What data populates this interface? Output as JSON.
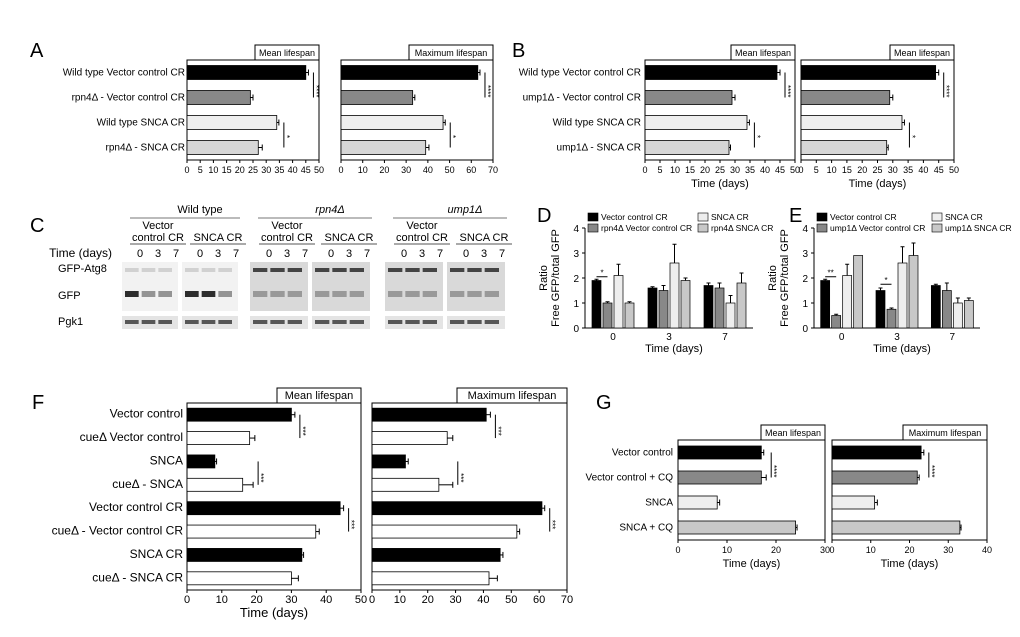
{
  "panels": {
    "A": {
      "letter": "A"
    },
    "B": {
      "letter": "B"
    },
    "C": {
      "letter": "C"
    },
    "D": {
      "letter": "D"
    },
    "E": {
      "letter": "E"
    },
    "F": {
      "letter": "F"
    },
    "G": {
      "letter": "G"
    }
  },
  "blot": {
    "groups": [
      "Wild type",
      "rpn4Δ",
      "ump1Δ"
    ],
    "conditions": [
      "Vector\ncontrol CR",
      "SNCA CR"
    ],
    "time_label": "Time (days)",
    "timepoints": [
      "0",
      "3",
      "7"
    ],
    "bands": [
      "GFP-Atg8",
      "GFP",
      "Pgk1"
    ]
  },
  "chart_data": [
    {
      "id": "A1",
      "type": "bar",
      "orientation": "horizontal",
      "title": "Mean lifespan",
      "categories": [
        "Wild type Vector control CR",
        "rpn4Δ - Vector control CR",
        "Wild type SNCA CR",
        "rpn4Δ - SNCA CR"
      ],
      "values": [
        45,
        24,
        34,
        27
      ],
      "errors": [
        1,
        1,
        0.8,
        1.5
      ],
      "colors": [
        "#000000",
        "#888888",
        "#eeeeee",
        "#d6d6d6"
      ],
      "xlim": [
        0,
        50
      ],
      "xticks": [
        0,
        5,
        10,
        15,
        20,
        25,
        30,
        35,
        40,
        45,
        50
      ],
      "sig": [
        "****",
        "*"
      ]
    },
    {
      "id": "A2",
      "type": "bar",
      "orientation": "horizontal",
      "title": "Maximum lifespan",
      "categories": [
        "Wild type Vector control CR",
        "rpn4Δ - Vector control CR",
        "Wild type SNCA CR",
        "rpn4Δ - SNCA CR"
      ],
      "values": [
        63,
        33,
        47,
        39
      ],
      "errors": [
        1,
        1,
        1,
        1.5
      ],
      "colors": [
        "#000000",
        "#888888",
        "#eeeeee",
        "#d6d6d6"
      ],
      "xlim": [
        0,
        70
      ],
      "xticks": [
        0,
        10,
        20,
        30,
        40,
        50,
        60,
        70
      ],
      "sig": [
        "****",
        "*"
      ]
    },
    {
      "id": "B1",
      "type": "bar",
      "orientation": "horizontal",
      "title": "Mean lifespan",
      "xlabel": "Time (days)",
      "categories": [
        "Wild type Vector control CR",
        "ump1Δ - Vector control CR",
        "Wild type SNCA CR",
        "ump1Δ - SNCA CR"
      ],
      "values": [
        44,
        29,
        34,
        28
      ],
      "errors": [
        1,
        1,
        0.8,
        0.5
      ],
      "colors": [
        "#000000",
        "#888888",
        "#eeeeee",
        "#d6d6d6"
      ],
      "xlim": [
        0,
        50
      ],
      "xticks": [
        0,
        5,
        10,
        15,
        20,
        25,
        30,
        35,
        40,
        45,
        50
      ],
      "sig": [
        "****",
        "*"
      ]
    },
    {
      "id": "B2",
      "type": "bar",
      "orientation": "horizontal",
      "title": "Mean lifespan",
      "xlabel": "Time (days)",
      "categories": [
        "Wild type Vector control CR",
        "ump1Δ - Vector control CR",
        "Wild type SNCA CR",
        "ump1Δ - SNCA CR"
      ],
      "values": [
        44,
        29,
        33,
        28
      ],
      "errors": [
        1,
        1,
        0.8,
        0.5
      ],
      "colors": [
        "#000000",
        "#888888",
        "#eeeeee",
        "#d6d6d6"
      ],
      "xlim": [
        0,
        50
      ],
      "xticks": [
        0,
        5,
        10,
        15,
        20,
        25,
        30,
        35,
        40,
        45,
        50
      ],
      "sig": [
        "****",
        "*"
      ]
    },
    {
      "id": "D",
      "type": "bar",
      "ylabel": "Ratio\nFree GFP/total GFP",
      "xlabel": "Time (days)",
      "categories": [
        "0",
        "3",
        "7"
      ],
      "ylim": [
        0,
        4
      ],
      "yticks": [
        0,
        1,
        2,
        3,
        4
      ],
      "series": [
        {
          "name": "Vector control CR",
          "values": [
            1.9,
            1.6,
            1.7
          ],
          "errors": [
            0.05,
            0.05,
            0.1
          ],
          "color": "#000000"
        },
        {
          "name": "rpn4Δ Vector control CR",
          "values": [
            1.0,
            1.5,
            1.6
          ],
          "errors": [
            0.05,
            0.2,
            0.2
          ],
          "color": "#888888"
        },
        {
          "name": "SNCA CR",
          "values": [
            2.1,
            2.6,
            1.0
          ],
          "errors": [
            0.45,
            0.75,
            0.3
          ],
          "color": "#eeeeee"
        },
        {
          "name": "rpn4Δ SNCA CR",
          "values": [
            1.0,
            1.9,
            1.8
          ],
          "errors": [
            0.05,
            0.1,
            0.4
          ],
          "color": "#c8c8c8"
        }
      ],
      "sig": [
        "*"
      ]
    },
    {
      "id": "E",
      "type": "bar",
      "ylabel": "Ratio\nFree GFP/total GFP",
      "xlabel": "Time (days)",
      "categories": [
        "0",
        "3",
        "7"
      ],
      "ylim": [
        0,
        4
      ],
      "yticks": [
        0,
        1,
        2,
        3,
        4
      ],
      "series": [
        {
          "name": "Vector control CR",
          "values": [
            1.9,
            1.5,
            1.7
          ],
          "errors": [
            0.05,
            0.1,
            0.05
          ],
          "color": "#000000"
        },
        {
          "name": "ump1Δ Vector control CR",
          "values": [
            0.5,
            0.75,
            1.5
          ],
          "errors": [
            0.05,
            0.05,
            0.3
          ],
          "color": "#888888"
        },
        {
          "name": "SNCA CR",
          "values": [
            2.1,
            2.6,
            1.0
          ],
          "errors": [
            0.45,
            0.65,
            0.2
          ],
          "color": "#eeeeee"
        },
        {
          "name": "ump1Δ SNCA CR",
          "values": [
            2.9,
            2.9,
            1.1
          ],
          "errors": [
            0.0,
            0.5,
            0.1
          ],
          "color": "#c8c8c8"
        }
      ],
      "sig": [
        "**",
        "*"
      ]
    },
    {
      "id": "F1",
      "type": "bar",
      "orientation": "horizontal",
      "title": "Mean lifespan",
      "xlabel": "Time (days)",
      "categories": [
        "Vector control",
        "cueΔ Vector control",
        "SNCA",
        "cueΔ - SNCA",
        "Vector control CR",
        "cueΔ - Vector control CR",
        "SNCA CR",
        "cueΔ - SNCA CR"
      ],
      "values": [
        30,
        18,
        8,
        16,
        44,
        37,
        33,
        30
      ],
      "errors": [
        1,
        1.5,
        0.5,
        3,
        1,
        1,
        0.5,
        2
      ],
      "colors": [
        "#000000",
        "#ffffff",
        "#000000",
        "#ffffff",
        "#000000",
        "#ffffff",
        "#000000",
        "#ffffff"
      ],
      "xlim": [
        0,
        50
      ],
      "xticks": [
        0,
        10,
        20,
        30,
        40,
        50
      ],
      "sig": [
        "***",
        "***",
        "***"
      ]
    },
    {
      "id": "F2",
      "type": "bar",
      "orientation": "horizontal",
      "title": "Maximum lifespan",
      "categories": [
        "Vector control",
        "cueΔ Vector control",
        "SNCA",
        "cueΔ - SNCA",
        "Vector control CR",
        "cueΔ - Vector control CR",
        "SNCA CR",
        "cueΔ - SNCA CR"
      ],
      "values": [
        41,
        27,
        12,
        24,
        61,
        52,
        46,
        42
      ],
      "errors": [
        1.5,
        2,
        1,
        5,
        1,
        1,
        1,
        3
      ],
      "colors": [
        "#000000",
        "#ffffff",
        "#000000",
        "#ffffff",
        "#000000",
        "#ffffff",
        "#000000",
        "#ffffff"
      ],
      "xlim": [
        0,
        70
      ],
      "xticks": [
        0,
        10,
        20,
        30,
        40,
        50,
        60,
        70
      ],
      "sig": [
        "***",
        "***",
        "***"
      ]
    },
    {
      "id": "G1",
      "type": "bar",
      "orientation": "horizontal",
      "title": "Mean lifespan",
      "xlabel": "Time (days)",
      "categories": [
        "Vector control",
        "Vector control + CQ",
        "SNCA",
        "SNCA + CQ"
      ],
      "values": [
        17,
        17,
        8,
        24
      ],
      "errors": [
        0.5,
        1,
        0.5,
        0.3
      ],
      "colors": [
        "#000000",
        "#888888",
        "#eeeeee",
        "#c8c8c8"
      ],
      "xlim": [
        0,
        30
      ],
      "xticks": [
        0,
        10,
        20,
        30
      ],
      "sig": [
        "****"
      ]
    },
    {
      "id": "G2",
      "type": "bar",
      "orientation": "horizontal",
      "title": "Maximum lifespan",
      "xlabel": "Time (days)",
      "categories": [
        "Vector control",
        "Vector control + CQ",
        "SNCA",
        "SNCA + CQ"
      ],
      "values": [
        23,
        22,
        11,
        33
      ],
      "errors": [
        0.7,
        0.5,
        0.7,
        0.3
      ],
      "colors": [
        "#000000",
        "#888888",
        "#eeeeee",
        "#c8c8c8"
      ],
      "xlim": [
        0,
        40
      ],
      "xticks": [
        0,
        10,
        20,
        30,
        40
      ],
      "sig": [
        "****"
      ]
    }
  ]
}
